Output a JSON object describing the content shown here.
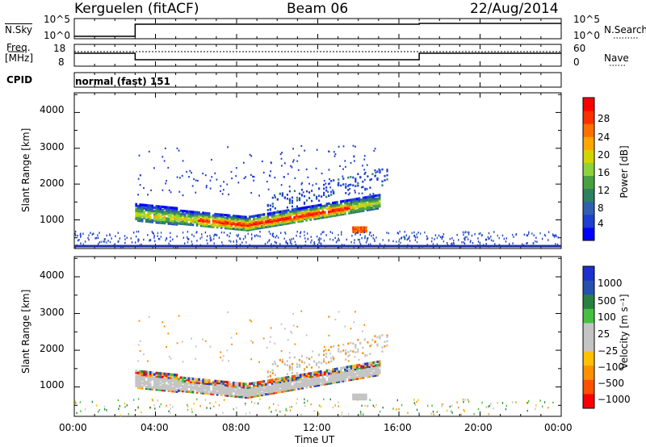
{
  "header": {
    "station": "Kerguelen (fitACF)",
    "beam": "Beam 06",
    "date": "22/Aug/2014"
  },
  "noise_panel": {
    "left_label": "N.Sky",
    "left_ticks": [
      "10^5",
      "10^0"
    ],
    "right_ticks": [
      "10^5",
      "10^0"
    ],
    "right_label": "N.Search"
  },
  "freq_panel": {
    "left_label_1": "Freq.",
    "left_label_2": "[MHz]",
    "left_ticks": [
      "18",
      "8"
    ],
    "right_ticks": [
      "60",
      "0"
    ],
    "right_label": "Nave"
  },
  "cpid_panel": {
    "label": "CPID",
    "value": "normal (fast) 151"
  },
  "x_axis": {
    "label": "Time UT",
    "ticks": [
      "00:00",
      "04:00",
      "08:00",
      "12:00",
      "16:00",
      "20:00",
      "00:00"
    ]
  },
  "colors": {
    "power_scale": [
      "#0000ff",
      "#1e3fd0",
      "#2f5fb0",
      "#2e8060",
      "#4aa040",
      "#8ed23a",
      "#d4d400",
      "#ffa600",
      "#ff7000",
      "#ff3000",
      "#ff0000"
    ],
    "velocity_scale": [
      "#1c2fcf",
      "#2850b0",
      "#2a8040",
      "#46c040",
      "#c4c4c4",
      "#c4c4c4",
      "#ffc000",
      "#ff9000",
      "#ff5000",
      "#ff0000"
    ]
  },
  "chart_data": [
    {
      "type": "heatmap",
      "title": "",
      "xlabel": "",
      "ylabel": "Slant Range [km]",
      "yticks": [
        "1000",
        "2000",
        "3000",
        "4000"
      ],
      "ylim": [
        200,
        4550
      ],
      "xlim": [
        0,
        24
      ],
      "colorbar_label": "Power [dB]",
      "colorbar_ticks": [
        "4",
        "8",
        "12",
        "16",
        "20",
        "24",
        "28"
      ],
      "features": [
        {
          "name": "main_band",
          "t_start": 3.0,
          "t_end": 15.0,
          "range_km": 1000,
          "power_db": 18
        },
        {
          "name": "far_band",
          "t_start": 9.5,
          "t_end": 15.5,
          "range_km": 2000,
          "power_db": 6
        },
        {
          "name": "near_clutter",
          "t_start": 0.0,
          "t_end": 24.0,
          "range_km": 300,
          "power_db": 6
        },
        {
          "name": "spot",
          "t_start": 13.7,
          "t_end": 14.4,
          "range_km": 750,
          "power_db": 24
        }
      ]
    },
    {
      "type": "heatmap",
      "title": "",
      "xlabel": "Time UT",
      "ylabel": "Slant Range [km]",
      "yticks": [
        "1000",
        "2000",
        "3000",
        "4000"
      ],
      "ylim": [
        200,
        4550
      ],
      "xlim": [
        0,
        24
      ],
      "colorbar_label": "Velocity [m s⁻¹]",
      "colorbar_ticks": [
        "1000",
        "500",
        "100",
        "25",
        "−25",
        "−100",
        "−500",
        "−1000"
      ]
    }
  ]
}
